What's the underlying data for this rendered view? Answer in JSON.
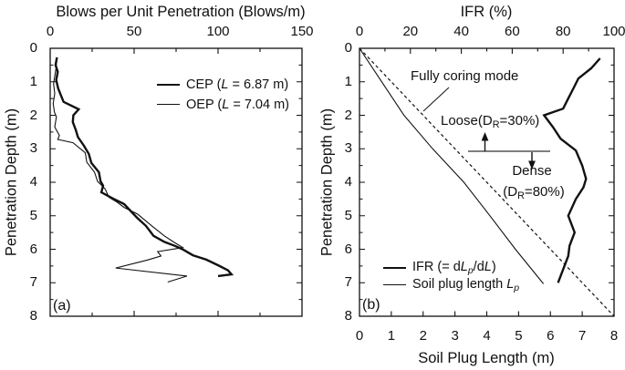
{
  "chart_data": [
    {
      "type": "line",
      "panel": "a",
      "title": "Blows per Unit Penetration (Blows/m)",
      "x_axis": {
        "label": "Blows per Unit Penetration (Blows/m)",
        "position": "top",
        "range": [
          0,
          150
        ],
        "tick_labels": [
          0,
          50,
          100,
          150
        ],
        "minor_step": 25
      },
      "y_axis": {
        "label": "Penetration Depth (m)",
        "range": [
          0,
          8
        ],
        "inverted": true,
        "tick_labels": [
          0,
          1,
          2,
          3,
          4,
          5,
          6,
          7,
          8
        ],
        "minor_step": 0.5
      },
      "grid": false,
      "legend_position": "upper-right-inside",
      "series": [
        {
          "name": "CEP (L = 6.87 m)",
          "style": "thick",
          "points": [
            [
              4,
              0.27
            ],
            [
              3.2,
              0.5
            ],
            [
              4.5,
              0.7
            ],
            [
              3.6,
              0.95
            ],
            [
              4.8,
              1.2
            ],
            [
              6.5,
              1.42
            ],
            [
              8,
              1.6
            ],
            [
              17,
              1.82
            ],
            [
              13.8,
              2.0
            ],
            [
              13.5,
              2.2
            ],
            [
              15.3,
              2.45
            ],
            [
              16.5,
              2.65
            ],
            [
              20,
              2.9
            ],
            [
              23,
              3.15
            ],
            [
              24.5,
              3.42
            ],
            [
              29,
              3.7
            ],
            [
              30,
              3.97
            ],
            [
              31.5,
              4.1
            ],
            [
              30.5,
              4.3
            ],
            [
              38,
              4.5
            ],
            [
              44,
              4.65
            ],
            [
              51.6,
              5.05
            ],
            [
              57,
              5.3
            ],
            [
              61.6,
              5.6
            ],
            [
              68,
              5.78
            ],
            [
              74.3,
              5.9
            ],
            [
              78.8,
              6.0
            ],
            [
              85,
              6.18
            ],
            [
              93,
              6.31
            ],
            [
              100.5,
              6.49
            ],
            [
              106,
              6.63
            ],
            [
              108,
              6.75
            ],
            [
              100,
              6.8
            ]
          ]
        },
        {
          "name": "OEP (L = 7.04 m)",
          "style": "thin",
          "points": [
            [
              4,
              0.3
            ],
            [
              3.5,
              0.6
            ],
            [
              2,
              1.05
            ],
            [
              2.7,
              1.35
            ],
            [
              1.8,
              1.65
            ],
            [
              2.5,
              1.9
            ],
            [
              3.7,
              2.05
            ],
            [
              2.7,
              2.35
            ],
            [
              5.5,
              2.6
            ],
            [
              4.5,
              2.72
            ],
            [
              13.6,
              2.82
            ],
            [
              20.9,
              3.12
            ],
            [
              21.8,
              3.4
            ],
            [
              26.4,
              3.7
            ],
            [
              28.2,
              3.97
            ],
            [
              32.7,
              4.2
            ],
            [
              35,
              4.45
            ],
            [
              40,
              4.6
            ],
            [
              44,
              4.75
            ],
            [
              52,
              4.95
            ],
            [
              60.5,
              5.3
            ],
            [
              68,
              5.6
            ],
            [
              74,
              5.8
            ],
            [
              79,
              5.95
            ],
            [
              64,
              6.07
            ],
            [
              66,
              6.2
            ],
            [
              58,
              6.32
            ],
            [
              39,
              6.56
            ],
            [
              81.5,
              6.8
            ],
            [
              70,
              6.98
            ]
          ]
        }
      ]
    },
    {
      "type": "line",
      "panel": "b",
      "title": "IFR (%)",
      "x_axis_top": {
        "label": "IFR (%)",
        "range": [
          0,
          100
        ],
        "tick_labels": [
          0,
          20,
          40,
          60,
          80,
          100
        ],
        "minor_step": 10
      },
      "x_axis_bottom": {
        "label": "Soil Plug Length (m)",
        "range": [
          0,
          8
        ],
        "tick_labels": [
          0,
          1,
          2,
          3,
          4,
          5,
          6,
          7,
          8
        ]
      },
      "y_axis": {
        "label": "Penetration Depth (m)",
        "range": [
          0,
          8
        ],
        "inverted": true,
        "tick_labels": [
          0,
          1,
          2,
          3,
          4,
          5,
          6,
          7,
          8
        ],
        "minor_step": 0.5
      },
      "grid": false,
      "legend_position": "lower-left-inside",
      "series": [
        {
          "name": "Fully coring mode",
          "style": "dashed",
          "x_scale": "bottom",
          "points": [
            [
              0,
              0
            ],
            [
              8,
              8
            ]
          ]
        },
        {
          "name": "Soil plug length Lp",
          "style": "thin",
          "x_scale": "bottom",
          "points": [
            [
              0,
              0
            ],
            [
              0.7,
              1
            ],
            [
              1.4,
              2
            ],
            [
              2.3,
              3
            ],
            [
              3.28,
              4
            ],
            [
              4.1,
              5
            ],
            [
              4.9,
              6
            ],
            [
              5.78,
              7.03
            ]
          ]
        },
        {
          "name": "IFR (= dLp/dL)",
          "style": "thick",
          "x_scale": "top",
          "points": [
            [
              94.5,
              0.3
            ],
            [
              91,
              0.6
            ],
            [
              86,
              0.9
            ],
            [
              84,
              1.2
            ],
            [
              82,
              1.5
            ],
            [
              80,
              1.8
            ],
            [
              72.5,
              2.0
            ],
            [
              76,
              2.35
            ],
            [
              79,
              2.7
            ],
            [
              85,
              3.05
            ],
            [
              87.5,
              3.5
            ],
            [
              89,
              3.9
            ],
            [
              88,
              4.15
            ],
            [
              85,
              4.5
            ],
            [
              82,
              5.0
            ],
            [
              84.5,
              5.5
            ],
            [
              82.5,
              5.9
            ],
            [
              82,
              6.2
            ],
            [
              80.5,
              6.5
            ],
            [
              78,
              7.0
            ]
          ]
        }
      ]
    }
  ],
  "ui": {
    "colors": {
      "ink": "#111111",
      "divider": "#555555",
      "background": "#ffffff"
    },
    "panel_a": {
      "corner_label": "(a)",
      "legend": [
        {
          "style": "thick",
          "text": "CEP (L = 6.87 m)",
          "segments": [
            {
              "t": "CEP ("
            },
            {
              "t": "L",
              "i": true
            },
            {
              "t": " = 6.87 m)"
            }
          ]
        },
        {
          "style": "thin",
          "text": "OEP (L = 7.04 m)",
          "segments": [
            {
              "t": "OEP ("
            },
            {
              "t": "L",
              "i": true
            },
            {
              "t": " = 7.04 m)"
            }
          ]
        }
      ]
    },
    "panel_b": {
      "corner_label": "(b)",
      "legend": [
        {
          "style": "thick",
          "text": "IFR (= dLp/dL)",
          "segments": [
            {
              "t": "IFR (= d"
            },
            {
              "t": "L",
              "i": true
            },
            {
              "t": "p",
              "i": true,
              "sub": true
            },
            {
              "t": "/d"
            },
            {
              "t": "L",
              "i": true
            },
            {
              "t": ")"
            }
          ]
        },
        {
          "style": "thin",
          "text": "Soil plug length Lp",
          "segments": [
            {
              "t": "Soil plug length "
            },
            {
              "t": "L",
              "i": true
            },
            {
              "t": "p",
              "i": true,
              "sub": true
            }
          ]
        }
      ],
      "annotations": {
        "fully_coring": {
          "text": "Fully coring mode",
          "segments": [
            {
              "t": "Fully coring mode"
            }
          ]
        },
        "loose": {
          "text": "Loose(DR=30%)",
          "segments": [
            {
              "t": "Loose(D"
            },
            {
              "t": "R",
              "sub": true
            },
            {
              "t": "=30%)"
            }
          ]
        },
        "dense": {
          "text": "Dense",
          "segments": [
            {
              "t": "Dense"
            }
          ]
        },
        "dense_dr": {
          "text": "(DR=80%)",
          "segments": [
            {
              "t": "(D"
            },
            {
              "t": "R",
              "sub": true
            },
            {
              "t": "=80%)"
            }
          ]
        }
      }
    }
  }
}
